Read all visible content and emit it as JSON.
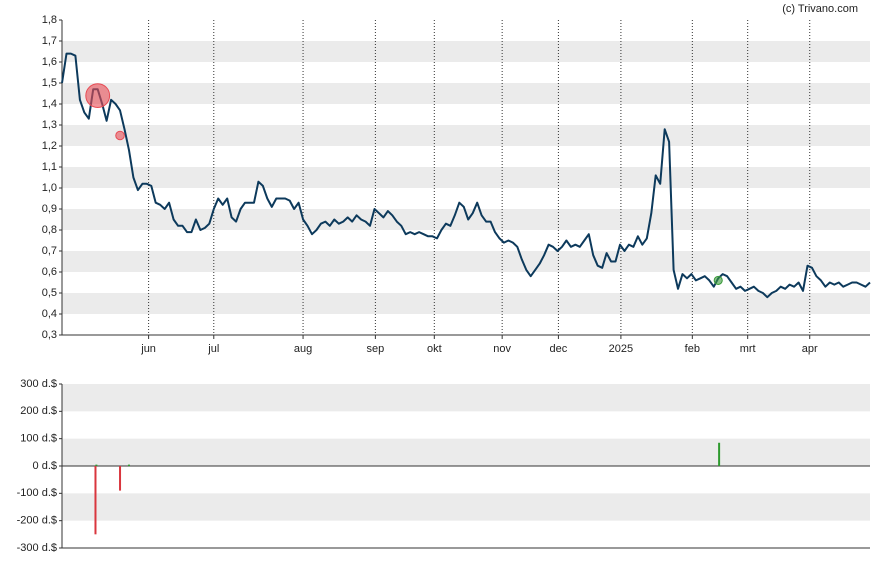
{
  "chart_data": [
    {
      "type": "line",
      "source": "(c) Trivano.com",
      "color": "#0d3a5c",
      "band_grid": true,
      "ylim": [
        0.3,
        1.8
      ],
      "yticks": [
        {
          "value": 0.3,
          "label": "0,3"
        },
        {
          "value": 0.4,
          "label": "0,4"
        },
        {
          "value": 0.5,
          "label": "0,5"
        },
        {
          "value": 0.6,
          "label": "0,6"
        },
        {
          "value": 0.7,
          "label": "0,7"
        },
        {
          "value": 0.8,
          "label": "0,8"
        },
        {
          "value": 0.9,
          "label": "0,9"
        },
        {
          "value": 1.0,
          "label": "1,0"
        },
        {
          "value": 1.1,
          "label": "1,1"
        },
        {
          "value": 1.2,
          "label": "1,2"
        },
        {
          "value": 1.3,
          "label": "1,3"
        },
        {
          "value": 1.4,
          "label": "1,4"
        },
        {
          "value": 1.5,
          "label": "1,5"
        },
        {
          "value": 1.6,
          "label": "1,6"
        },
        {
          "value": 1.7,
          "label": "1,7"
        },
        {
          "value": 1.8,
          "label": "1,8"
        }
      ],
      "xlim": [
        0,
        181
      ],
      "xticks": [
        {
          "value": 19.4,
          "label": "jun"
        },
        {
          "value": 34,
          "label": "jul"
        },
        {
          "value": 54,
          "label": "aug"
        },
        {
          "value": 70.2,
          "label": "sep"
        },
        {
          "value": 83.4,
          "label": "okt"
        },
        {
          "value": 98.6,
          "label": "nov"
        },
        {
          "value": 111.2,
          "label": "dec"
        },
        {
          "value": 125.2,
          "label": "2025"
        },
        {
          "value": 141.2,
          "label": "feb"
        },
        {
          "value": 153.6,
          "label": "mrt"
        },
        {
          "value": 167.5,
          "label": "apr"
        }
      ],
      "values": [
        1.5,
        1.64,
        1.64,
        1.63,
        1.42,
        1.36,
        1.33,
        1.47,
        1.47,
        1.4,
        1.32,
        1.42,
        1.4,
        1.37,
        1.28,
        1.18,
        1.05,
        0.99,
        1.02,
        1.02,
        1.01,
        0.93,
        0.92,
        0.9,
        0.93,
        0.85,
        0.82,
        0.82,
        0.79,
        0.79,
        0.85,
        0.8,
        0.81,
        0.83,
        0.9,
        0.95,
        0.92,
        0.95,
        0.86,
        0.84,
        0.9,
        0.93,
        0.93,
        0.93,
        1.03,
        1.01,
        0.95,
        0.91,
        0.95,
        0.95,
        0.95,
        0.94,
        0.9,
        0.93,
        0.85,
        0.82,
        0.78,
        0.8,
        0.83,
        0.84,
        0.82,
        0.85,
        0.83,
        0.84,
        0.86,
        0.84,
        0.87,
        0.85,
        0.84,
        0.82,
        0.9,
        0.88,
        0.86,
        0.89,
        0.87,
        0.84,
        0.82,
        0.78,
        0.79,
        0.78,
        0.79,
        0.78,
        0.77,
        0.77,
        0.76,
        0.8,
        0.83,
        0.82,
        0.87,
        0.93,
        0.91,
        0.85,
        0.88,
        0.93,
        0.87,
        0.84,
        0.84,
        0.79,
        0.76,
        0.74,
        0.75,
        0.74,
        0.72,
        0.66,
        0.61,
        0.58,
        0.61,
        0.64,
        0.68,
        0.73,
        0.72,
        0.7,
        0.72,
        0.75,
        0.72,
        0.73,
        0.72,
        0.75,
        0.78,
        0.68,
        0.63,
        0.62,
        0.69,
        0.65,
        0.65,
        0.73,
        0.7,
        0.73,
        0.72,
        0.77,
        0.73,
        0.76,
        0.88,
        1.06,
        1.02,
        1.28,
        1.22,
        0.61,
        0.52,
        0.59,
        0.57,
        0.59,
        0.56,
        0.57,
        0.58,
        0.56,
        0.53,
        0.57,
        0.59,
        0.58,
        0.55,
        0.52,
        0.53,
        0.51,
        0.52,
        0.53,
        0.51,
        0.5,
        0.48,
        0.5,
        0.51,
        0.53,
        0.52,
        0.54,
        0.53,
        0.55,
        0.51,
        0.63,
        0.62,
        0.58,
        0.56,
        0.53,
        0.55,
        0.54,
        0.55,
        0.53,
        0.54,
        0.55,
        0.55,
        0.54,
        0.53,
        0.55
      ],
      "markers": {
        "x": [
          8,
          13,
          147
        ],
        "values": [
          1.44,
          1.25,
          0.56
        ],
        "colors": [
          "#e84c55",
          "#e84c55",
          "#3a9a3a"
        ],
        "trade_bars": [
          0,
          2,
          4
        ]
      }
    },
    {
      "type": "bar",
      "band_grid": true,
      "up_color": "#2e9a2e",
      "down_color": "#d9363e",
      "ylim": [
        -300,
        300
      ],
      "yticks": [
        {
          "value": -300,
          "label": "-300 d.$"
        },
        {
          "value": -200,
          "label": "-200 d.$"
        },
        {
          "value": -100,
          "label": "-100 d.$"
        },
        {
          "value": 0,
          "label": "0 d.$"
        },
        {
          "value": 100,
          "label": "100 d.$"
        },
        {
          "value": 200,
          "label": "200 d.$"
        },
        {
          "value": 300,
          "label": "300 d.$"
        }
      ],
      "xlim": [
        0,
        181
      ],
      "x": [
        7.5,
        7.7,
        13,
        15,
        147.2
      ],
      "values": [
        -250,
        5,
        -90,
        5,
        85
      ]
    }
  ]
}
